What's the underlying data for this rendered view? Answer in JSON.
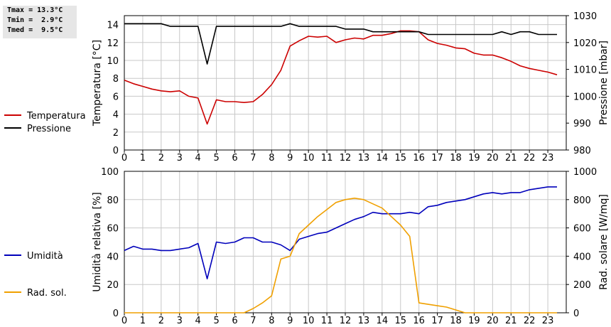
{
  "stats": {
    "tmax": "Tmax = 13.3°C",
    "tmin": "Tmin =  2.9°C",
    "tmed": "Tmed =  9.5°C"
  },
  "chart_data": [
    {
      "type": "line",
      "x_label": "",
      "x_ticks": [
        0,
        1,
        2,
        3,
        4,
        5,
        6,
        7,
        8,
        9,
        10,
        11,
        12,
        13,
        14,
        15,
        16,
        17,
        18,
        19,
        20,
        21,
        22,
        23
      ],
      "x_range": [
        0,
        24
      ],
      "y_left": {
        "label": "Temperatura [°C]",
        "range": [
          0,
          15
        ],
        "ticks": [
          0,
          2,
          4,
          6,
          8,
          10,
          12,
          14
        ]
      },
      "y_right": {
        "label": "Pressione [mbar]",
        "range": [
          980,
          1030
        ],
        "ticks": [
          980,
          990,
          1000,
          1010,
          1020,
          1030
        ]
      },
      "grid": true,
      "legend_position": "left",
      "series": [
        {
          "name": "Temperatura",
          "color": "#cc0000",
          "axis": "left",
          "x": [
            0,
            0.5,
            1,
            1.5,
            2,
            2.5,
            3,
            3.5,
            4,
            4.5,
            5,
            5.5,
            6,
            6.5,
            7,
            7.5,
            8,
            8.5,
            9,
            9.5,
            10,
            10.5,
            11,
            11.5,
            12,
            12.5,
            13,
            13.5,
            14,
            14.5,
            15,
            15.5,
            16,
            16.5,
            17,
            17.5,
            18,
            18.5,
            19,
            19.5,
            20,
            20.5,
            21,
            21.5,
            22,
            22.5,
            23,
            23.5
          ],
          "y": [
            7.8,
            7.4,
            7.1,
            6.8,
            6.6,
            6.5,
            6.6,
            6.0,
            5.8,
            2.9,
            5.6,
            5.4,
            5.4,
            5.3,
            5.4,
            6.2,
            7.3,
            8.9,
            11.6,
            12.2,
            12.7,
            12.6,
            12.7,
            12.0,
            12.3,
            12.5,
            12.4,
            12.8,
            12.8,
            13.0,
            13.3,
            13.3,
            13.2,
            12.3,
            11.9,
            11.7,
            11.4,
            11.3,
            10.8,
            10.6,
            10.6,
            10.3,
            9.9,
            9.4,
            9.1,
            8.9,
            8.7,
            8.4
          ]
        },
        {
          "name": "Pressione",
          "color": "#000000",
          "axis": "right",
          "x": [
            0,
            0.5,
            1,
            1.5,
            2,
            2.5,
            3,
            3.5,
            4,
            4.5,
            5,
            5.5,
            6,
            6.5,
            7,
            7.5,
            8,
            8.5,
            9,
            9.5,
            10,
            10.5,
            11,
            11.5,
            12,
            12.5,
            13,
            13.5,
            14,
            14.5,
            15,
            15.5,
            16,
            16.5,
            17,
            17.5,
            18,
            18.5,
            19,
            19.5,
            20,
            20.5,
            21,
            21.5,
            22,
            22.5,
            23,
            23.5
          ],
          "y": [
            1027,
            1027,
            1027,
            1027,
            1027,
            1026,
            1026,
            1026,
            1026,
            1012,
            1026,
            1026,
            1026,
            1026,
            1026,
            1026,
            1026,
            1026,
            1027,
            1026,
            1026,
            1026,
            1026,
            1026,
            1025,
            1025,
            1025,
            1024,
            1024,
            1024,
            1024,
            1024,
            1024,
            1023,
            1023,
            1023,
            1023,
            1023,
            1023,
            1023,
            1023,
            1024,
            1023,
            1024,
            1024,
            1023,
            1023,
            1023
          ]
        }
      ]
    },
    {
      "type": "line",
      "x_label": "",
      "x_ticks": [
        0,
        1,
        2,
        3,
        4,
        5,
        6,
        7,
        8,
        9,
        10,
        11,
        12,
        13,
        14,
        15,
        16,
        17,
        18,
        19,
        20,
        21,
        22,
        23
      ],
      "x_range": [
        0,
        24
      ],
      "y_left": {
        "label": "Umidità relativa [%]",
        "range": [
          0,
          100
        ],
        "ticks": [
          0,
          20,
          40,
          60,
          80,
          100
        ]
      },
      "y_right": {
        "label": "Rad. solare [W/mq]",
        "range": [
          0,
          1000
        ],
        "ticks": [
          0,
          200,
          400,
          600,
          800,
          1000
        ]
      },
      "grid": true,
      "legend_position": "left",
      "series": [
        {
          "name": "Umidità",
          "color": "#0000bb",
          "axis": "left",
          "x": [
            0,
            0.5,
            1,
            1.5,
            2,
            2.5,
            3,
            3.5,
            4,
            4.5,
            5,
            5.5,
            6,
            6.5,
            7,
            7.5,
            8,
            8.5,
            9,
            9.5,
            10,
            10.5,
            11,
            11.5,
            12,
            12.5,
            13,
            13.5,
            14,
            14.5,
            15,
            15.5,
            16,
            16.5,
            17,
            17.5,
            18,
            18.5,
            19,
            19.5,
            20,
            20.5,
            21,
            21.5,
            22,
            22.5,
            23,
            23.5
          ],
          "y": [
            44,
            47,
            45,
            45,
            44,
            44,
            45,
            46,
            49,
            24,
            50,
            49,
            50,
            53,
            53,
            50,
            50,
            48,
            44,
            52,
            54,
            56,
            57,
            60,
            63,
            66,
            68,
            71,
            70,
            70,
            70,
            71,
            70,
            75,
            76,
            78,
            79,
            80,
            82,
            84,
            85,
            84,
            85,
            85,
            87,
            88,
            89,
            89
          ]
        },
        {
          "name": "Rad. sol.",
          "color": "#f0a000",
          "axis": "right",
          "x": [
            0,
            1,
            2,
            3,
            4,
            5,
            6,
            6.5,
            7,
            7.5,
            8,
            8.5,
            9,
            9.5,
            10,
            10.5,
            11,
            11.5,
            12,
            12.5,
            13,
            13.5,
            14,
            14.5,
            15,
            15.5,
            16,
            16.5,
            17,
            17.5,
            18,
            18.5,
            19,
            20,
            21,
            22,
            23,
            23.5
          ],
          "y": [
            0,
            0,
            0,
            0,
            0,
            0,
            0,
            0,
            30,
            70,
            120,
            380,
            400,
            560,
            620,
            680,
            730,
            780,
            800,
            810,
            800,
            770,
            740,
            680,
            620,
            540,
            70,
            60,
            50,
            40,
            20,
            0,
            0,
            0,
            0,
            0,
            0,
            0
          ]
        }
      ]
    }
  ]
}
